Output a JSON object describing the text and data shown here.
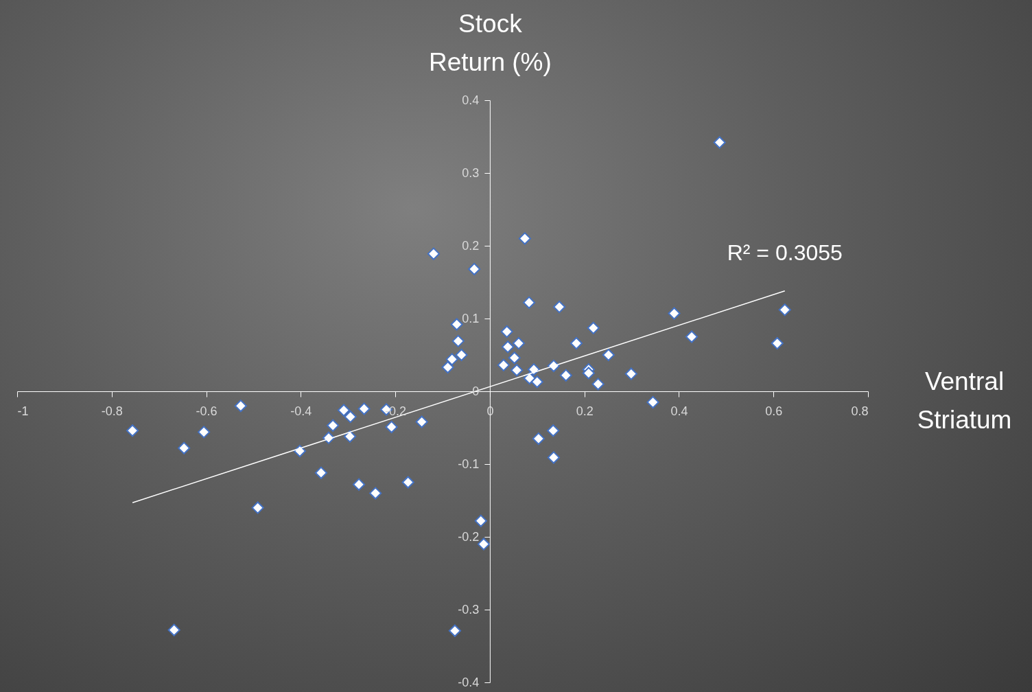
{
  "chart_data": {
    "type": "scatter",
    "ylabel": "Stock Return (%)",
    "xlabel": "Ventral Striatum",
    "xlim": [
      -1,
      0.8
    ],
    "ylim": [
      -0.4,
      0.4
    ],
    "xticks": [
      -1,
      -0.8,
      -0.6,
      -0.4,
      -0.2,
      0,
      0.2,
      0.4,
      0.6,
      0.8
    ],
    "yticks": [
      -0.4,
      -0.3,
      -0.2,
      -0.1,
      0,
      0.1,
      0.2,
      0.3,
      0.4
    ],
    "grid": false,
    "annotations": [
      "R² = 0.3055"
    ],
    "series": [
      {
        "marker": "diamond",
        "color": "#ffffff",
        "x": [
          0.486,
          0.074,
          -0.119,
          -0.033,
          0.083,
          0.147,
          -0.07,
          0.036,
          0.219,
          0.39,
          0.624,
          0.427,
          0.608,
          -0.067,
          0.061,
          0.183,
          0.038,
          -0.06,
          -0.08,
          0.052,
          0.251,
          -0.089,
          0.029,
          0.057,
          0.135,
          0.093,
          0.209,
          0.209,
          0.161,
          0.299,
          0.084,
          0.1,
          0.229,
          0.345,
          -0.527,
          -0.309,
          -0.266,
          -0.219,
          -0.295,
          -0.144,
          -0.332,
          -0.208,
          -0.756,
          -0.605,
          0.134,
          -0.341,
          -0.296,
          0.103,
          -0.647,
          -0.402,
          0.135,
          -0.357,
          -0.173,
          -0.277,
          -0.242,
          -0.491,
          -0.019,
          -0.013,
          -0.668,
          -0.074
        ],
        "values": [
          0.342,
          0.21,
          0.189,
          0.168,
          0.122,
          0.116,
          0.092,
          0.082,
          0.087,
          0.107,
          0.112,
          0.075,
          0.066,
          0.069,
          0.066,
          0.066,
          0.061,
          0.05,
          0.044,
          0.046,
          0.05,
          0.033,
          0.036,
          0.029,
          0.035,
          0.03,
          0.03,
          0.025,
          0.022,
          0.024,
          0.018,
          0.013,
          0.01,
          -0.015,
          -0.02,
          -0.026,
          -0.024,
          -0.025,
          -0.035,
          -0.042,
          -0.047,
          -0.049,
          -0.054,
          -0.056,
          -0.054,
          -0.064,
          -0.062,
          -0.065,
          -0.078,
          -0.082,
          -0.091,
          -0.112,
          -0.125,
          -0.128,
          -0.14,
          -0.16,
          -0.178,
          -0.21,
          -0.328,
          -0.329
        ]
      },
      {
        "type": "line",
        "marker": "none",
        "color": "#ffffff",
        "line_style": "solid",
        "x": [
          -0.756,
          0.624
        ],
        "values": [
          -0.153,
          0.138
        ]
      }
    ]
  }
}
